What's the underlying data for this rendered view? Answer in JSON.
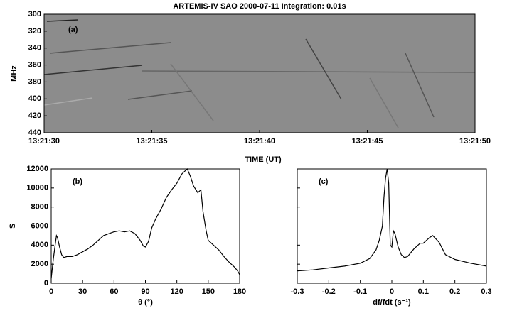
{
  "chart_data": [
    {
      "type": "image",
      "title": "ARTEMIS-IV  SAO 2000-07-11   Integration: 0.01s",
      "label": "(a)",
      "xlabel": "TIME (UT)",
      "ylabel": "MHz",
      "xlim": [
        "13:21:30",
        "13:21:50"
      ],
      "xticks": [
        "13:21:30",
        "13:21:35",
        "13:21:40",
        "13:21:45",
        "13:21:50"
      ],
      "ylim": [
        440,
        300
      ],
      "yticks": [
        300,
        320,
        340,
        360,
        380,
        400,
        420,
        440
      ],
      "color": "#8c8c8c"
    },
    {
      "type": "line",
      "label": "(b)",
      "xlabel": "θ (°)",
      "ylabel": "S",
      "x": [
        0,
        2,
        4,
        5,
        6,
        8,
        10,
        12,
        15,
        20,
        25,
        30,
        35,
        40,
        45,
        50,
        55,
        60,
        65,
        70,
        75,
        80,
        85,
        88,
        90,
        93,
        96,
        100,
        105,
        110,
        115,
        120,
        125,
        128,
        130,
        133,
        136,
        140,
        143,
        145,
        148,
        150,
        155,
        160,
        165,
        170,
        175,
        178,
        180
      ],
      "values": [
        500,
        2500,
        4200,
        5000,
        4800,
        3800,
        3000,
        2700,
        2800,
        2800,
        3000,
        3300,
        3600,
        4000,
        4500,
        5000,
        5200,
        5400,
        5500,
        5400,
        5500,
        5200,
        4500,
        3900,
        3800,
        4400,
        5800,
        6800,
        7800,
        9000,
        9800,
        10500,
        11500,
        11800,
        12000,
        11200,
        10200,
        9500,
        9800,
        7500,
        5500,
        4500,
        4000,
        3500,
        2800,
        2200,
        1700,
        1300,
        900
      ],
      "color": "#000000",
      "xlim": [
        0,
        180
      ],
      "xticks": [
        0,
        30,
        60,
        90,
        120,
        150,
        180
      ],
      "ylim": [
        0,
        12000
      ],
      "yticks": [
        0,
        2000,
        4000,
        6000,
        8000,
        10000,
        12000
      ],
      "ytick_labels": true
    },
    {
      "type": "line",
      "label": "(c)",
      "xlabel": "df/fdt (s⁻¹)",
      "x": [
        -0.3,
        -0.25,
        -0.2,
        -0.15,
        -0.1,
        -0.07,
        -0.05,
        -0.04,
        -0.03,
        -0.025,
        -0.02,
        -0.015,
        -0.01,
        -0.005,
        0,
        0.005,
        0.01,
        0.02,
        0.03,
        0.04,
        0.05,
        0.07,
        0.09,
        0.1,
        0.12,
        0.13,
        0.15,
        0.17,
        0.2,
        0.25,
        0.3
      ],
      "values": [
        1300,
        1400,
        1600,
        1800,
        2100,
        2600,
        3500,
        4500,
        6000,
        9000,
        11000,
        12000,
        10500,
        4000,
        3800,
        5500,
        5200,
        3800,
        3000,
        2700,
        2800,
        3600,
        4200,
        4200,
        4800,
        5000,
        4300,
        3000,
        2500,
        2100,
        1800
      ],
      "color": "#000000",
      "xlim": [
        -0.3,
        0.3
      ],
      "xticks": [
        -0.3,
        -0.2,
        -0.1,
        0,
        0.1,
        0.2,
        0.3
      ],
      "ylim": [
        0,
        12000
      ],
      "yticks": [
        0,
        2000,
        4000,
        6000,
        8000,
        10000,
        12000
      ],
      "ytick_labels": false
    }
  ]
}
